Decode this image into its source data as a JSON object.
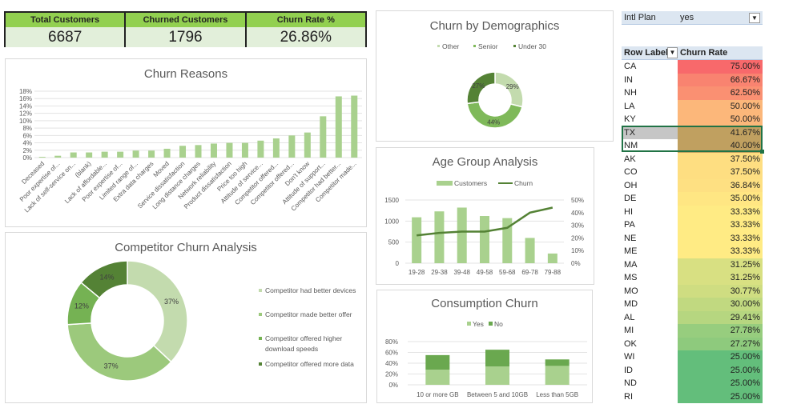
{
  "kpis": [
    {
      "label": "Total Customers",
      "value": "6687"
    },
    {
      "label": "Churned Customers",
      "value": "1796"
    },
    {
      "label": "Churn Rate %",
      "value": "26.86%"
    }
  ],
  "colors": {
    "kpi_header": "#92d050",
    "kpi_value": "#e2efda",
    "bar": "#a9d18e",
    "dark": "#548235",
    "heat_high": "#f8696b",
    "heat_mid": "#ffeb84",
    "heat_low": "#63be7b"
  },
  "chart_data": [
    {
      "type": "bar",
      "title": "Churn Reasons",
      "ylim": [
        0,
        18
      ],
      "yticks": [
        "0%",
        "2%",
        "4%",
        "6%",
        "8%",
        "10%",
        "12%",
        "14%",
        "16%",
        "18%"
      ],
      "grid": true,
      "categories": [
        "Deceased",
        "Poor expertise of...",
        "Lack of self-service on...",
        "(blank)",
        "Lack of affordable...",
        "Poor expertise of...",
        "Limited range of...",
        "Extra data charges",
        "Moved",
        "Service dissatisfaction",
        "Long distance charges",
        "Network reliability",
        "Product dissatisfaction",
        "Price too high",
        "Attitude of service...",
        "Competitor offered...",
        "Competitor offered...",
        "Don't know",
        "Attitude of support...",
        "Competitor had better...",
        "Competitor made..."
      ],
      "values": [
        0.2,
        0.5,
        1.4,
        1.4,
        1.6,
        1.6,
        1.9,
        1.9,
        2.4,
        3.2,
        3.4,
        3.8,
        4.0,
        4.0,
        4.6,
        5.2,
        6.0,
        6.8,
        11.2,
        16.6,
        16.8
      ]
    },
    {
      "type": "pie",
      "title": "Competitor Churn Analysis",
      "donut": true,
      "legend": "right",
      "labels": [
        "Competitor had better devices",
        "Competitor made better offer",
        "Competitor offered higher download speeds",
        "Competitor offered more data"
      ],
      "values": [
        37,
        37,
        12,
        14
      ],
      "data_labels": [
        "37%",
        "37%",
        "12%",
        "14%"
      ],
      "colors": [
        "#c3dbae",
        "#9cc97c",
        "#75b253",
        "#548235"
      ]
    },
    {
      "type": "pie",
      "title": "Churn by Demographics",
      "donut": true,
      "legend": "top",
      "labels": [
        "Other",
        "Senior",
        "Under 30"
      ],
      "values": [
        29,
        44,
        27
      ],
      "data_labels": [
        "29%",
        "44%",
        "27%"
      ],
      "colors": [
        "#c3dbae",
        "#7fb95a",
        "#548235"
      ]
    },
    {
      "type": "bar",
      "title": "Age Group Analysis",
      "legend": "top",
      "categories": [
        "19-28",
        "29-38",
        "39-48",
        "49-58",
        "59-68",
        "69-78",
        "79-88"
      ],
      "series": [
        {
          "name": "Customers",
          "type": "bar",
          "values": [
            1090,
            1230,
            1320,
            1120,
            1070,
            600,
            230
          ]
        },
        {
          "name": "Churn",
          "type": "line",
          "axis": "right",
          "values": [
            22,
            24,
            25,
            25,
            28,
            40,
            44
          ]
        }
      ],
      "ylim": [
        0,
        1500
      ],
      "yticks": [
        "0",
        "500",
        "1000",
        "1500"
      ],
      "y2lim": [
        0,
        50
      ],
      "y2ticks": [
        "0%",
        "10%",
        "20%",
        "30%",
        "40%",
        "50%"
      ]
    },
    {
      "type": "bar",
      "stacked": true,
      "title": "Consumption Churn",
      "legend": "top",
      "categories": [
        "10 or more GB",
        "Between 5 and 10GB",
        "Less than 5GB"
      ],
      "series": [
        {
          "name": "Yes",
          "values": [
            28,
            34,
            35
          ]
        },
        {
          "name": "No",
          "values": [
            27,
            31,
            12
          ]
        }
      ],
      "ylim": [
        0,
        80
      ],
      "yticks": [
        "0%",
        "20%",
        "40%",
        "60%",
        "80%"
      ]
    }
  ],
  "pivot": {
    "filter_label": "Intl Plan",
    "filter_value": "yes",
    "header_label": "Row Label",
    "header_value": "Churn Rate",
    "rows": [
      {
        "state": "CA",
        "rate": "75.00%",
        "v": 75
      },
      {
        "state": "IN",
        "rate": "66.67%",
        "v": 66.67
      },
      {
        "state": "NH",
        "rate": "62.50%",
        "v": 62.5
      },
      {
        "state": "LA",
        "rate": "50.00%",
        "v": 50
      },
      {
        "state": "KY",
        "rate": "50.00%",
        "v": 50
      },
      {
        "state": "TX",
        "rate": "41.67%",
        "v": 41.67
      },
      {
        "state": "NM",
        "rate": "40.00%",
        "v": 40
      },
      {
        "state": "AK",
        "rate": "37.50%",
        "v": 37.5
      },
      {
        "state": "CO",
        "rate": "37.50%",
        "v": 37.5
      },
      {
        "state": "OH",
        "rate": "36.84%",
        "v": 36.84
      },
      {
        "state": "DE",
        "rate": "35.00%",
        "v": 35
      },
      {
        "state": "HI",
        "rate": "33.33%",
        "v": 33.33
      },
      {
        "state": "PA",
        "rate": "33.33%",
        "v": 33.33
      },
      {
        "state": "NE",
        "rate": "33.33%",
        "v": 33.33
      },
      {
        "state": "ME",
        "rate": "33.33%",
        "v": 33.33
      },
      {
        "state": "MA",
        "rate": "31.25%",
        "v": 31.25
      },
      {
        "state": "MS",
        "rate": "31.25%",
        "v": 31.25
      },
      {
        "state": "MO",
        "rate": "30.77%",
        "v": 30.77
      },
      {
        "state": "MD",
        "rate": "30.00%",
        "v": 30
      },
      {
        "state": "AL",
        "rate": "29.41%",
        "v": 29.41
      },
      {
        "state": "MI",
        "rate": "27.78%",
        "v": 27.78
      },
      {
        "state": "OK",
        "rate": "27.27%",
        "v": 27.27
      },
      {
        "state": "WI",
        "rate": "25.00%",
        "v": 25
      },
      {
        "state": "ID",
        "rate": "25.00%",
        "v": 25
      },
      {
        "state": "ND",
        "rate": "25.00%",
        "v": 25
      },
      {
        "state": "RI",
        "rate": "25.00%",
        "v": 25
      }
    ]
  }
}
